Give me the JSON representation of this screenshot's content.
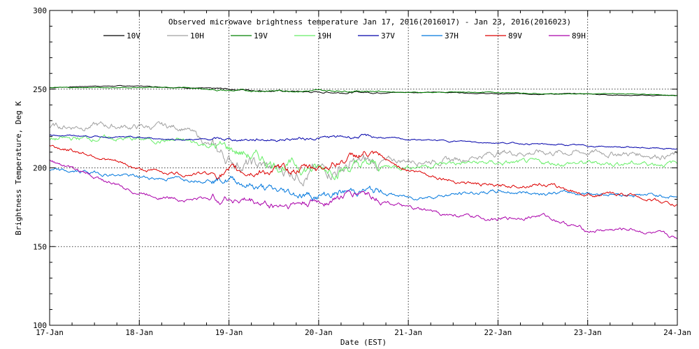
{
  "chart_data": {
    "type": "line",
    "title": "Observed microwave brightness temperature Jan 17, 2016(2016017) - Jan 23, 2016(2016023)",
    "xlabel": "Date (EST)",
    "ylabel": "Brightness Temperature, Deg K",
    "xlim": [
      "2016-01-17",
      "2016-01-24"
    ],
    "ylim": [
      100,
      300
    ],
    "x_tick_labels": [
      "17-Jan",
      "18-Jan",
      "19-Jan",
      "20-Jan",
      "21-Jan",
      "22-Jan",
      "23-Jan",
      "24-Jan"
    ],
    "y_tick_labels": [
      "100",
      "150",
      "200",
      "250",
      "300"
    ],
    "grid": true,
    "legend_position": "top",
    "x": [
      "2016-01-17T00:00",
      "2016-01-17T12:00",
      "2016-01-18T00:00",
      "2016-01-18T12:00",
      "2016-01-19T00:00",
      "2016-01-19T12:00",
      "2016-01-20T00:00",
      "2016-01-20T12:00",
      "2016-01-21T00:00",
      "2016-01-21T12:00",
      "2016-01-22T00:00",
      "2016-01-22T12:00",
      "2016-01-23T00:00",
      "2016-01-23T12:00",
      "2016-01-24T00:00"
    ],
    "series": [
      {
        "name": "10V",
        "color": "#000000",
        "noise": 0.3,
        "values": [
          251,
          252,
          252,
          251,
          250,
          249,
          248,
          248,
          248,
          248,
          247,
          247,
          247,
          246,
          246
        ]
      },
      {
        "name": "10H",
        "color": "#a0a0a0",
        "noise": 2.5,
        "values": [
          226,
          227,
          226,
          226,
          205,
          199,
          197,
          203,
          205,
          205,
          210,
          210,
          210,
          209,
          208
        ]
      },
      {
        "name": "19V",
        "color": "#008000",
        "noise": 0.3,
        "values": [
          251,
          251,
          251,
          251,
          249,
          249,
          249,
          249,
          248,
          248,
          248,
          247,
          247,
          247,
          246
        ]
      },
      {
        "name": "19H",
        "color": "#66ee66",
        "noise": 2.0,
        "values": [
          218,
          219,
          218,
          217,
          212,
          203,
          199,
          201,
          201,
          203,
          203,
          203,
          203,
          203,
          203
        ]
      },
      {
        "name": "37V",
        "color": "#0000aa",
        "noise": 0.6,
        "values": [
          221,
          220,
          219,
          218,
          218,
          218,
          219,
          220,
          218,
          217,
          216,
          215,
          214,
          213,
          212
        ]
      },
      {
        "name": "37H",
        "color": "#0077dd",
        "noise": 1.5,
        "values": [
          198,
          197,
          194,
          193,
          193,
          185,
          182,
          186,
          181,
          183,
          185,
          184,
          184,
          183,
          182
        ]
      },
      {
        "name": "89V",
        "color": "#dd0000",
        "noise": 1.5,
        "values": [
          214,
          208,
          199,
          196,
          197,
          198,
          200,
          209,
          199,
          192,
          188,
          190,
          183,
          183,
          176
        ]
      },
      {
        "name": "89H",
        "color": "#aa00aa",
        "noise": 1.5,
        "values": [
          205,
          194,
          184,
          180,
          181,
          176,
          178,
          185,
          174,
          170,
          167,
          170,
          160,
          161,
          155
        ]
      }
    ]
  }
}
